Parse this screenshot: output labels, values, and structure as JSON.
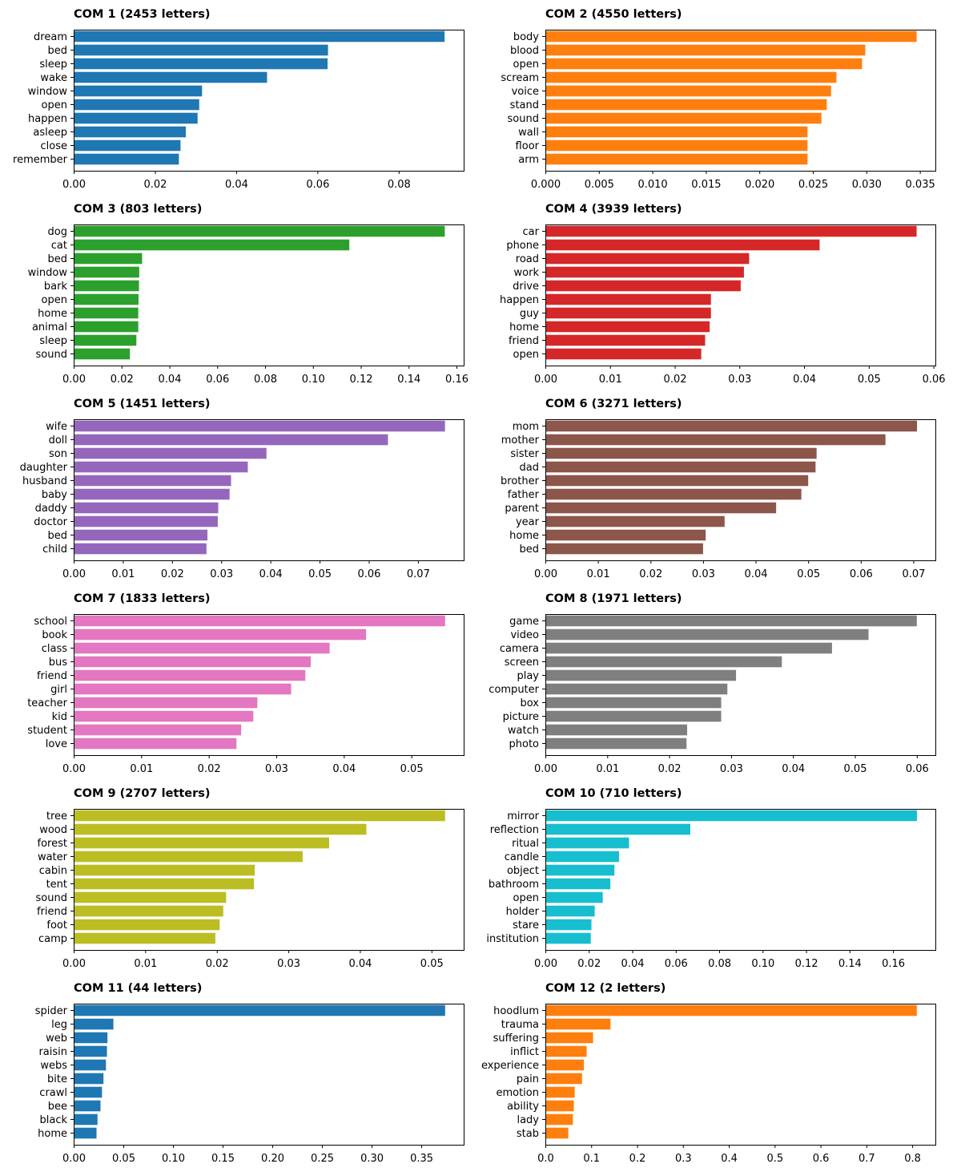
{
  "chart_data": [
    {
      "type": "bar",
      "orientation": "horizontal",
      "title": "COM 1 (2453 letters)",
      "color": "#1f77b4",
      "categories": [
        "dream",
        "bed",
        "sleep",
        "wake",
        "window",
        "open",
        "happen",
        "asleep",
        "close",
        "remember"
      ],
      "values": [
        0.0913,
        0.0626,
        0.0625,
        0.0476,
        0.0316,
        0.0309,
        0.0305,
        0.0276,
        0.0263,
        0.0259
      ],
      "xlim": [
        0,
        0.096
      ],
      "xticks": [
        0,
        0.02,
        0.04,
        0.06,
        0.08
      ],
      "xtick_labels": [
        "0.00",
        "0.02",
        "0.04",
        "0.06",
        "0.08"
      ]
    },
    {
      "type": "bar",
      "orientation": "horizontal",
      "title": "COM 2 (4550 letters)",
      "color": "#ff7f0e",
      "categories": [
        "body",
        "blood",
        "open",
        "scream",
        "voice",
        "stand",
        "sound",
        "wall",
        "floor",
        "arm"
      ],
      "values": [
        0.0347,
        0.0299,
        0.0296,
        0.0272,
        0.0267,
        0.0263,
        0.0258,
        0.0245,
        0.0245,
        0.0245
      ],
      "xlim": [
        0,
        0.03645
      ],
      "xticks": [
        0,
        0.005,
        0.01,
        0.015,
        0.02,
        0.025,
        0.03,
        0.035
      ],
      "xtick_labels": [
        "0.000",
        "0.005",
        "0.010",
        "0.015",
        "0.020",
        "0.025",
        "0.030",
        "0.035"
      ]
    },
    {
      "type": "bar",
      "orientation": "horizontal",
      "title": "COM 3 (803 letters)",
      "color": "#2ca02c",
      "categories": [
        "dog",
        "cat",
        "bed",
        "window",
        "bark",
        "open",
        "home",
        "animal",
        "sleep",
        "sound"
      ],
      "values": [
        0.1551,
        0.1152,
        0.0286,
        0.0274,
        0.0273,
        0.0271,
        0.027,
        0.027,
        0.0262,
        0.0235
      ],
      "xlim": [
        0,
        0.163
      ],
      "xticks": [
        0,
        0.02,
        0.04,
        0.06,
        0.08,
        0.1,
        0.12,
        0.14,
        0.16
      ],
      "xtick_labels": [
        "0.00",
        "0.02",
        "0.04",
        "0.06",
        "0.08",
        "0.10",
        "0.12",
        "0.14",
        "0.16"
      ]
    },
    {
      "type": "bar",
      "orientation": "horizontal",
      "title": "COM 4 (3939 letters)",
      "color": "#d62728",
      "categories": [
        "car",
        "phone",
        "road",
        "work",
        "drive",
        "happen",
        "guy",
        "home",
        "friend",
        "open"
      ],
      "values": [
        0.0574,
        0.0424,
        0.0315,
        0.0307,
        0.0302,
        0.0256,
        0.0256,
        0.0254,
        0.0247,
        0.0241
      ],
      "xlim": [
        0,
        0.0603
      ],
      "xticks": [
        0,
        0.01,
        0.02,
        0.03,
        0.04,
        0.05,
        0.06
      ],
      "xtick_labels": [
        "0.00",
        "0.01",
        "0.02",
        "0.03",
        "0.04",
        "0.05",
        "0.06"
      ]
    },
    {
      "type": "bar",
      "orientation": "horizontal",
      "title": "COM 5 (1451 letters)",
      "color": "#9467bd",
      "categories": [
        "wife",
        "doll",
        "son",
        "daughter",
        "husband",
        "baby",
        "daddy",
        "doctor",
        "bed",
        "child"
      ],
      "values": [
        0.0755,
        0.0639,
        0.0392,
        0.0354,
        0.032,
        0.0317,
        0.0294,
        0.0293,
        0.0272,
        0.027
      ],
      "xlim": [
        0,
        0.0793
      ],
      "xticks": [
        0,
        0.01,
        0.02,
        0.03,
        0.04,
        0.05,
        0.06,
        0.07
      ],
      "xtick_labels": [
        "0.00",
        "0.01",
        "0.02",
        "0.03",
        "0.04",
        "0.05",
        "0.06",
        "0.07"
      ]
    },
    {
      "type": "bar",
      "orientation": "horizontal",
      "title": "COM 6 (3271 letters)",
      "color": "#8c564b",
      "categories": [
        "mom",
        "mother",
        "sister",
        "dad",
        "brother",
        "father",
        "parent",
        "year",
        "home",
        "bed"
      ],
      "values": [
        0.0707,
        0.0647,
        0.0516,
        0.0514,
        0.05,
        0.0487,
        0.0439,
        0.0341,
        0.0305,
        0.03
      ],
      "xlim": [
        0,
        0.0742
      ],
      "xticks": [
        0,
        0.01,
        0.02,
        0.03,
        0.04,
        0.05,
        0.06,
        0.07
      ],
      "xtick_labels": [
        "0.00",
        "0.01",
        "0.02",
        "0.03",
        "0.04",
        "0.05",
        "0.06",
        "0.07"
      ]
    },
    {
      "type": "bar",
      "orientation": "horizontal",
      "title": "COM 7 (1833 letters)",
      "color": "#e377c2",
      "categories": [
        "school",
        "book",
        "class",
        "bus",
        "friend",
        "girl",
        "teacher",
        "kid",
        "student",
        "love"
      ],
      "values": [
        0.055,
        0.0433,
        0.0379,
        0.0351,
        0.0343,
        0.0322,
        0.0272,
        0.0266,
        0.0248,
        0.0241
      ],
      "xlim": [
        0,
        0.05775
      ],
      "xticks": [
        0,
        0.01,
        0.02,
        0.03,
        0.04,
        0.05
      ],
      "xtick_labels": [
        "0.00",
        "0.01",
        "0.02",
        "0.03",
        "0.04",
        "0.05"
      ]
    },
    {
      "type": "bar",
      "orientation": "horizontal",
      "title": "COM 8 (1971 letters)",
      "color": "#7f7f7f",
      "categories": [
        "game",
        "video",
        "camera",
        "screen",
        "play",
        "computer",
        "box",
        "picture",
        "watch",
        "photo"
      ],
      "values": [
        0.06,
        0.0522,
        0.0463,
        0.0382,
        0.0308,
        0.0294,
        0.0284,
        0.0284,
        0.0229,
        0.0228
      ],
      "xlim": [
        0,
        0.063
      ],
      "xticks": [
        0,
        0.01,
        0.02,
        0.03,
        0.04,
        0.05,
        0.06
      ],
      "xtick_labels": [
        "0.00",
        "0.01",
        "0.02",
        "0.03",
        "0.04",
        "0.05",
        "0.06"
      ]
    },
    {
      "type": "bar",
      "orientation": "horizontal",
      "title": "COM 9 (2707 letters)",
      "color": "#bcbd22",
      "categories": [
        "tree",
        "wood",
        "forest",
        "water",
        "cabin",
        "tent",
        "sound",
        "friend",
        "foot",
        "camp"
      ],
      "values": [
        0.0519,
        0.0409,
        0.0357,
        0.032,
        0.0253,
        0.0252,
        0.0213,
        0.0209,
        0.0204,
        0.0198
      ],
      "xlim": [
        0,
        0.0545
      ],
      "xticks": [
        0,
        0.01,
        0.02,
        0.03,
        0.04,
        0.05
      ],
      "xtick_labels": [
        "0.00",
        "0.01",
        "0.02",
        "0.03",
        "0.04",
        "0.05"
      ]
    },
    {
      "type": "bar",
      "orientation": "horizontal",
      "title": "COM 10 (710 letters)",
      "color": "#17becf",
      "categories": [
        "mirror",
        "reflection",
        "ritual",
        "candle",
        "object",
        "bathroom",
        "open",
        "holder",
        "stare",
        "institution"
      ],
      "values": [
        0.171,
        0.0667,
        0.0385,
        0.0339,
        0.0318,
        0.0299,
        0.0264,
        0.0227,
        0.0212,
        0.0209
      ],
      "xlim": [
        0,
        0.1795
      ],
      "xticks": [
        0,
        0.02,
        0.04,
        0.06,
        0.08,
        0.1,
        0.12,
        0.14,
        0.16
      ],
      "xtick_labels": [
        "0.00",
        "0.02",
        "0.04",
        "0.06",
        "0.08",
        "0.10",
        "0.12",
        "0.14",
        "0.16"
      ]
    },
    {
      "type": "bar",
      "orientation": "horizontal",
      "title": "COM 11 (44 letters)",
      "color": "#1f77b4",
      "categories": [
        "spider",
        "leg",
        "web",
        "raisin",
        "webs",
        "bite",
        "crawl",
        "bee",
        "black",
        "home"
      ],
      "values": [
        0.374,
        0.04,
        0.034,
        0.0335,
        0.0325,
        0.03,
        0.0285,
        0.027,
        0.024,
        0.023
      ],
      "xlim": [
        0,
        0.3927
      ],
      "xticks": [
        0,
        0.05,
        0.1,
        0.15,
        0.2,
        0.25,
        0.3,
        0.35
      ],
      "xtick_labels": [
        "0.00",
        "0.05",
        "0.10",
        "0.15",
        "0.20",
        "0.25",
        "0.30",
        "0.35"
      ]
    },
    {
      "type": "bar",
      "orientation": "horizontal",
      "title": "COM 12 (2 letters)",
      "color": "#ff7f0e",
      "categories": [
        "hoodlum",
        "trauma",
        "suffering",
        "inflict",
        "experience",
        "pain",
        "emotion",
        "ability",
        "lady",
        "stab"
      ],
      "values": [
        0.81,
        0.142,
        0.104,
        0.09,
        0.084,
        0.08,
        0.064,
        0.062,
        0.06,
        0.05
      ],
      "xlim": [
        0,
        0.8505
      ],
      "xticks": [
        0,
        0.1,
        0.2,
        0.3,
        0.4,
        0.5,
        0.6,
        0.7,
        0.8
      ],
      "xtick_labels": [
        "0.0",
        "0.1",
        "0.2",
        "0.3",
        "0.4",
        "0.5",
        "0.6",
        "0.7",
        "0.8"
      ]
    }
  ]
}
